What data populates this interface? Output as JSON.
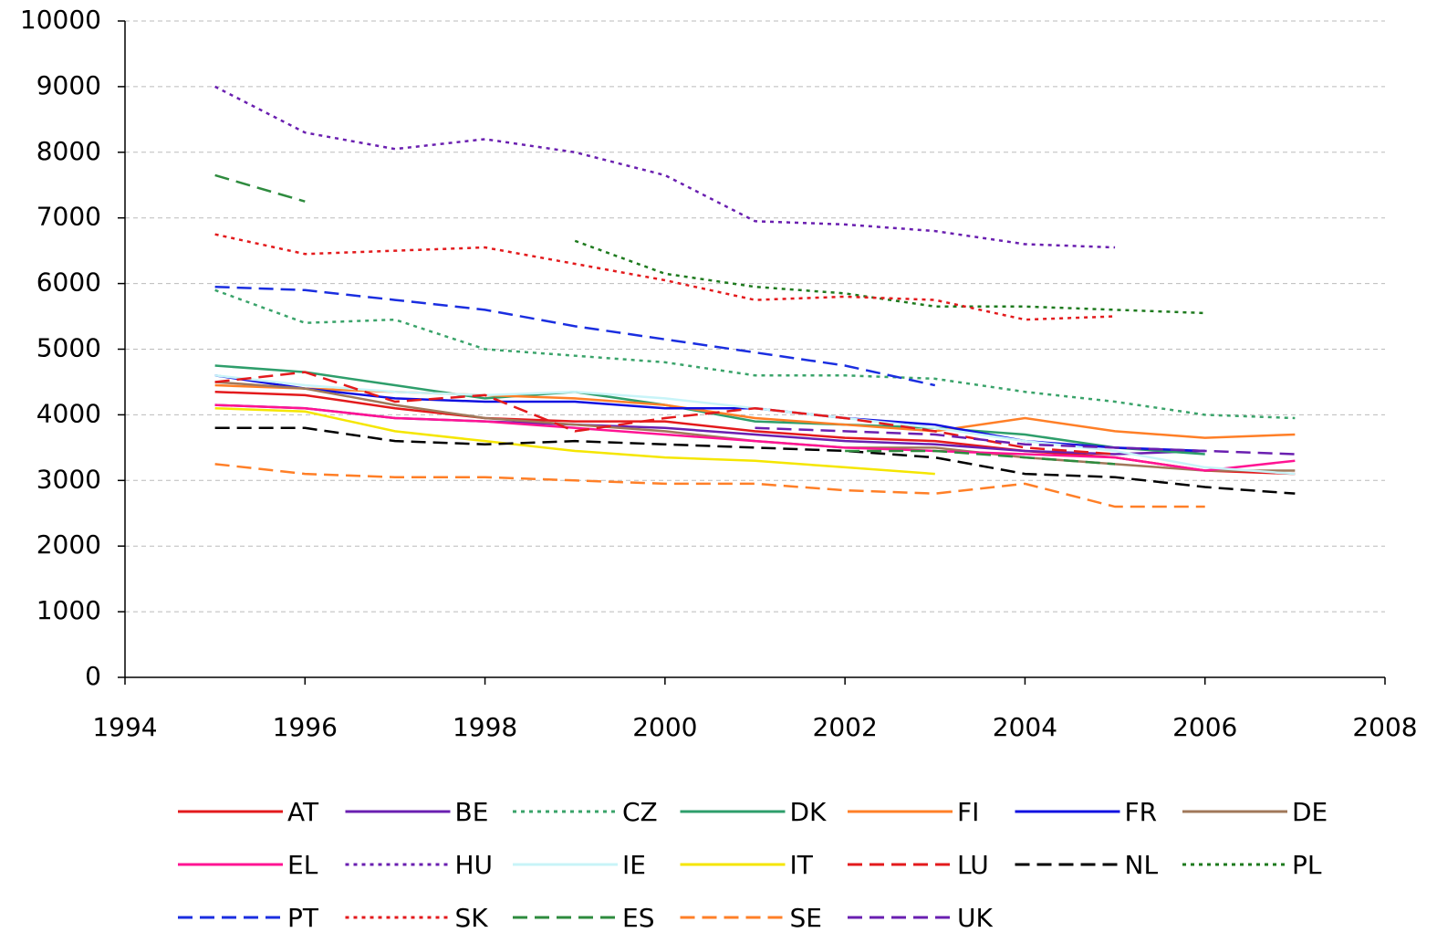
{
  "chart_data": {
    "type": "line",
    "x": [
      1995,
      1996,
      1997,
      1998,
      1999,
      2000,
      2001,
      2002,
      2003,
      2004,
      2005,
      2006,
      2007
    ],
    "xlim": [
      1994,
      2008
    ],
    "xticks": [
      1994,
      1996,
      1998,
      2000,
      2002,
      2004,
      2006,
      2008
    ],
    "ylim": [
      0,
      10000
    ],
    "yticks": [
      0,
      1000,
      2000,
      3000,
      4000,
      5000,
      6000,
      7000,
      8000,
      9000,
      10000
    ],
    "grid": true,
    "legend": "bottom",
    "series": [
      {
        "name": "AT",
        "color": "#e31a1c",
        "dash": "solid",
        "values": [
          4350,
          4300,
          4100,
          3950,
          3900,
          3900,
          3750,
          3650,
          3600,
          3450,
          3350,
          3150,
          3100
        ]
      },
      {
        "name": "BE",
        "color": "#6a1fb0",
        "dash": "solid",
        "values": [
          4150,
          4100,
          3950,
          3900,
          3850,
          3800,
          3700,
          3600,
          3550,
          3450,
          3400,
          3450,
          null
        ]
      },
      {
        "name": "CZ",
        "color": "#3aa36a",
        "dash": "dotted",
        "values": [
          5900,
          5400,
          5450,
          5000,
          4900,
          4800,
          4600,
          4600,
          4550,
          4350,
          4200,
          4000,
          3950
        ]
      },
      {
        "name": "DK",
        "color": "#2e9e6b",
        "dash": "solid",
        "values": [
          4750,
          4650,
          4450,
          4250,
          4350,
          4150,
          3900,
          3850,
          3800,
          3700,
          3500,
          3400,
          null
        ]
      },
      {
        "name": "FI",
        "color": "#ff7f27",
        "dash": "solid",
        "values": [
          4450,
          4400,
          4350,
          4300,
          4250,
          4150,
          3950,
          3850,
          3750,
          3950,
          3750,
          3650,
          3700
        ]
      },
      {
        "name": "FR",
        "color": "#1010e0",
        "dash": "solid",
        "values": [
          4600,
          4400,
          4250,
          4200,
          4200,
          4100,
          4100,
          3950,
          3850,
          3600,
          3500,
          3450,
          null
        ]
      },
      {
        "name": "DE",
        "color": "#a0785a",
        "dash": "solid",
        "values": [
          4500,
          4400,
          4150,
          3950,
          3850,
          3750,
          3600,
          3500,
          3500,
          3350,
          3250,
          3150,
          3150
        ]
      },
      {
        "name": "EL",
        "color": "#ff1493",
        "dash": "solid",
        "values": [
          4150,
          4100,
          3950,
          3900,
          3800,
          3700,
          3600,
          3500,
          3450,
          3400,
          3350,
          3150,
          3300
        ]
      },
      {
        "name": "HU",
        "color": "#6a1fb0",
        "dash": "dotted",
        "values": [
          9000,
          8300,
          8050,
          8200,
          8000,
          7650,
          6950,
          6900,
          6800,
          6600,
          6550,
          null,
          null
        ]
      },
      {
        "name": "IE",
        "color": "#c8f4f8",
        "dash": "solid",
        "values": [
          4600,
          4450,
          4350,
          4300,
          4350,
          4250,
          4100,
          3950,
          3800,
          3600,
          3450,
          3200,
          3100
        ]
      },
      {
        "name": "IT",
        "color": "#f5e600",
        "dash": "solid",
        "values": [
          4100,
          4050,
          3750,
          3600,
          3450,
          3350,
          3300,
          3200,
          3100,
          null,
          null,
          null,
          null
        ]
      },
      {
        "name": "LU",
        "color": "#e31a1c",
        "dash": "dashed",
        "values": [
          4500,
          4650,
          4200,
          4300,
          3750,
          3950,
          4100,
          3950,
          3750,
          3500,
          3400,
          null,
          null
        ]
      },
      {
        "name": "NL",
        "color": "#000000",
        "dash": "dashed",
        "values": [
          3800,
          3800,
          3600,
          3550,
          3600,
          3550,
          3500,
          3450,
          3350,
          3100,
          3050,
          2900,
          2800
        ]
      },
      {
        "name": "PL",
        "color": "#1e7a1e",
        "dash": "dotted",
        "values": [
          null,
          null,
          null,
          null,
          6650,
          6150,
          5950,
          5850,
          5650,
          5650,
          5600,
          5550,
          null
        ]
      },
      {
        "name": "PT",
        "color": "#1a2ee0",
        "dash": "dashed",
        "values": [
          5950,
          5900,
          5750,
          5600,
          5350,
          5150,
          4950,
          4750,
          4450,
          null,
          null,
          null,
          null
        ]
      },
      {
        "name": "SK",
        "color": "#e31a1c",
        "dash": "dotted",
        "values": [
          6750,
          6450,
          6500,
          6550,
          6300,
          6050,
          5750,
          5800,
          5750,
          5450,
          5500,
          null,
          null
        ]
      },
      {
        "name": "ES",
        "color": "#2e8b3e",
        "dash": "dashed",
        "values": [
          7650,
          7250,
          null,
          null,
          null,
          null,
          null,
          3450,
          3450,
          3350,
          3250,
          null,
          null
        ]
      },
      {
        "name": "SE",
        "color": "#ff7f27",
        "dash": "dashed",
        "values": [
          3250,
          3100,
          3050,
          3050,
          3000,
          2950,
          2950,
          2850,
          2800,
          2950,
          2600,
          2600,
          null
        ]
      },
      {
        "name": "UK",
        "color": "#6a1fb0",
        "dash": "dashed",
        "values": [
          null,
          null,
          null,
          null,
          null,
          null,
          3800,
          3750,
          3700,
          3550,
          3500,
          3450,
          3400
        ]
      }
    ]
  }
}
